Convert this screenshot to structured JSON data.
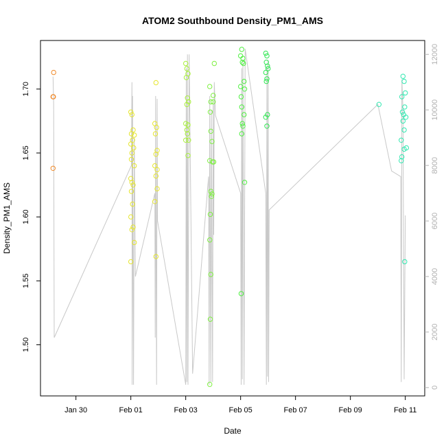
{
  "chart_data": {
    "type": "scatter",
    "title": "ATOM2 Southbound Density_PM1_AMS",
    "xlabel": "Date",
    "ylabel": "Density_PM1_AMS",
    "xlim": [
      "2022-01-28T17:00",
      "2022-02-11T17:00"
    ],
    "ylim": [
      1.46,
      1.738
    ],
    "y2lim": [
      -300,
      12500
    ],
    "x_ticks": [
      {
        "date": "2022-01-30",
        "label": "Jan 30"
      },
      {
        "date": "2022-02-01",
        "label": "Feb 01"
      },
      {
        "date": "2022-02-03",
        "label": "Feb 03"
      },
      {
        "date": "2022-02-05",
        "label": "Feb 05"
      },
      {
        "date": "2022-02-07",
        "label": "Feb 07"
      },
      {
        "date": "2022-02-09",
        "label": "Feb 09"
      },
      {
        "date": "2022-02-11",
        "label": "Feb 11"
      }
    ],
    "y_ticks": [
      {
        "value": 1.5,
        "label": "1.50"
      },
      {
        "value": 1.55,
        "label": "1.55"
      },
      {
        "value": 1.6,
        "label": "1.60"
      },
      {
        "value": 1.65,
        "label": "1.65"
      },
      {
        "value": 1.7,
        "label": "1.70"
      }
    ],
    "y2_ticks": [
      {
        "value": 0,
        "label": "0"
      },
      {
        "value": 2000,
        "label": "2000"
      },
      {
        "value": 4000,
        "label": "4000"
      },
      {
        "value": 6000,
        "label": "6000"
      },
      {
        "value": 8000,
        "label": "8000"
      },
      {
        "value": 10000,
        "label": "10000"
      },
      {
        "value": 12000,
        "label": "12000"
      }
    ],
    "grid": false,
    "legend": "none",
    "line_color": "#c8c8c8",
    "secondary_line": [
      [
        "2022-01-29T04:00",
        11200
      ],
      [
        "2022-01-29T04:30",
        10200
      ],
      [
        "2022-01-29T05:00",
        1800
      ],
      [
        "2022-02-01T00:30",
        8000
      ],
      [
        "2022-02-01T01:00",
        11000
      ],
      [
        "2022-02-01T01:10",
        100
      ],
      [
        "2022-02-01T01:30",
        10500
      ],
      [
        "2022-02-01T02:00",
        4000
      ],
      [
        "2022-02-01T02:20",
        100
      ],
      [
        "2022-02-01T03:00",
        9000
      ],
      [
        "2022-02-01T04:00",
        4000
      ],
      [
        "2022-02-01T21:00",
        7000
      ],
      [
        "2022-02-01T21:20",
        1800
      ],
      [
        "2022-02-01T21:40",
        10500
      ],
      [
        "2022-02-01T22:00",
        6000
      ],
      [
        "2022-02-01T22:30",
        100
      ],
      [
        "2022-02-01T23:00",
        10400
      ],
      [
        "2022-02-01T23:20",
        6000
      ],
      [
        "2022-02-03T00:00",
        100
      ],
      [
        "2022-02-03T00:30",
        11500
      ],
      [
        "2022-02-03T01:00",
        200
      ],
      [
        "2022-02-03T01:30",
        12000
      ],
      [
        "2022-02-03T02:00",
        100
      ],
      [
        "2022-02-03T03:00",
        12000
      ],
      [
        "2022-02-03T06:00",
        500
      ],
      [
        "2022-02-03T20:00",
        7600
      ],
      [
        "2022-02-03T20:30",
        100
      ],
      [
        "2022-02-03T21:00",
        10500
      ],
      [
        "2022-02-03T21:30",
        5000
      ],
      [
        "2022-02-03T22:00",
        200
      ],
      [
        "2022-02-03T22:30",
        10000
      ],
      [
        "2022-02-03T23:00",
        4500
      ],
      [
        "2022-02-03T23:30",
        200
      ],
      [
        "2022-02-04T00:00",
        10200
      ],
      [
        "2022-02-04T00:30",
        5500
      ],
      [
        "2022-02-04T01:00",
        11000
      ],
      [
        "2022-02-04T02:00",
        9800
      ],
      [
        "2022-02-05T00:00",
        7000
      ],
      [
        "2022-02-05T00:30",
        100
      ],
      [
        "2022-02-05T01:00",
        11500
      ],
      [
        "2022-02-05T01:30",
        300
      ],
      [
        "2022-02-05T02:00",
        11800
      ],
      [
        "2022-02-05T03:00",
        100
      ],
      [
        "2022-02-05T04:00",
        12200
      ],
      [
        "2022-02-05T22:00",
        7000
      ],
      [
        "2022-02-05T22:30",
        100
      ],
      [
        "2022-02-05T23:00",
        11500
      ],
      [
        "2022-02-05T23:30",
        400
      ],
      [
        "2022-02-06T00:00",
        11800
      ],
      [
        "2022-02-06T00:30",
        200
      ],
      [
        "2022-02-06T01:00",
        6400
      ],
      [
        "2022-02-10T00:00",
        10200
      ],
      [
        "2022-02-10T12:00",
        7800
      ],
      [
        "2022-02-10T20:00",
        7600
      ],
      [
        "2022-02-10T20:30",
        200
      ],
      [
        "2022-02-10T21:00",
        11100
      ],
      [
        "2022-02-10T22:00",
        10000
      ],
      [
        "2022-02-10T23:00",
        300
      ],
      [
        "2022-02-11T00:00",
        6200
      ]
    ],
    "series": [
      {
        "color": "#f08a2a",
        "points": [
          [
            "2022-01-29T04:30",
            1.713
          ],
          [
            "2022-01-29T04:00",
            1.694
          ],
          [
            "2022-01-29T04:15",
            1.694
          ],
          [
            "2022-01-29T04:00",
            1.638
          ]
        ]
      },
      {
        "color": "#e6e62e",
        "points": [
          [
            "2022-02-01T00:00",
            1.682
          ],
          [
            "2022-02-01T01:00",
            1.68
          ],
          [
            "2022-02-01T02:00",
            1.668
          ],
          [
            "2022-02-01T00:30",
            1.665
          ],
          [
            "2022-02-01T03:00",
            1.664
          ],
          [
            "2022-02-01T01:30",
            1.66
          ],
          [
            "2022-02-01T00:00",
            1.657
          ],
          [
            "2022-02-01T02:30",
            1.654
          ],
          [
            "2022-02-01T01:00",
            1.65
          ],
          [
            "2022-02-01T00:30",
            1.645
          ],
          [
            "2022-02-01T03:00",
            1.64
          ],
          [
            "2022-02-01T00:00",
            1.63
          ],
          [
            "2022-02-01T01:00",
            1.627
          ],
          [
            "2022-02-01T02:00",
            1.625
          ],
          [
            "2022-02-01T00:30",
            1.62
          ],
          [
            "2022-02-01T01:30",
            1.61
          ],
          [
            "2022-02-01T00:00",
            1.6
          ],
          [
            "2022-02-01T02:00",
            1.592
          ],
          [
            "2022-02-01T01:00",
            1.59
          ],
          [
            "2022-02-01T03:00",
            1.58
          ],
          [
            "2022-02-01T00:00",
            1.565
          ],
          [
            "2022-02-01T22:00",
            1.705
          ],
          [
            "2022-02-01T21:00",
            1.673
          ],
          [
            "2022-02-01T22:30",
            1.67
          ],
          [
            "2022-02-01T21:30",
            1.665
          ],
          [
            "2022-02-01T23:00",
            1.652
          ],
          [
            "2022-02-01T22:00",
            1.649
          ],
          [
            "2022-02-01T21:00",
            1.64
          ],
          [
            "2022-02-01T23:00",
            1.637
          ],
          [
            "2022-02-01T22:00",
            1.632
          ],
          [
            "2022-02-01T23:00",
            1.622
          ],
          [
            "2022-02-01T21:00",
            1.612
          ],
          [
            "2022-02-01T22:00",
            1.569
          ]
        ]
      },
      {
        "color": "#a8f03a",
        "points": [
          [
            "2022-02-03T00:00",
            1.72
          ],
          [
            "2022-02-03T01:00",
            1.716
          ],
          [
            "2022-02-03T02:00",
            1.712
          ],
          [
            "2022-02-03T00:30",
            1.709
          ],
          [
            "2022-02-03T01:30",
            1.693
          ],
          [
            "2022-02-03T02:30",
            1.69
          ],
          [
            "2022-02-03T01:00",
            1.688
          ],
          [
            "2022-02-03T00:00",
            1.673
          ],
          [
            "2022-02-03T02:00",
            1.672
          ],
          [
            "2022-02-03T01:00",
            1.668
          ],
          [
            "2022-02-03T01:30",
            1.665
          ],
          [
            "2022-02-03T00:00",
            1.66
          ],
          [
            "2022-02-03T02:30",
            1.66
          ],
          [
            "2022-02-03T02:00",
            1.648
          ]
        ]
      },
      {
        "color": "#7ef040",
        "points": [
          [
            "2022-02-03T21:00",
            1.702
          ],
          [
            "2022-02-04T01:00",
            1.72
          ],
          [
            "2022-02-04T00:00",
            1.695
          ],
          [
            "2022-02-03T22:00",
            1.69
          ],
          [
            "2022-02-04T00:00",
            1.69
          ],
          [
            "2022-02-03T21:30",
            1.682
          ],
          [
            "2022-02-03T22:00",
            1.667
          ],
          [
            "2022-02-03T23:00",
            1.659
          ],
          [
            "2022-02-03T21:00",
            1.644
          ],
          [
            "2022-02-03T23:30",
            1.643
          ],
          [
            "2022-02-04T00:30",
            1.643
          ],
          [
            "2022-02-03T22:00",
            1.62
          ],
          [
            "2022-02-03T23:00",
            1.618
          ],
          [
            "2022-02-03T22:30",
            1.616
          ],
          [
            "2022-02-03T21:30",
            1.602
          ],
          [
            "2022-02-03T21:00",
            1.582
          ],
          [
            "2022-02-03T22:00",
            1.555
          ],
          [
            "2022-02-03T21:30",
            1.52
          ],
          [
            "2022-02-03T21:00",
            1.469
          ]
        ]
      },
      {
        "color": "#4ef040",
        "points": [
          [
            "2022-02-05T01:00",
            1.731
          ],
          [
            "2022-02-05T00:00",
            1.726
          ],
          [
            "2022-02-05T02:00",
            1.724
          ],
          [
            "2022-02-05T01:30",
            1.721
          ],
          [
            "2022-02-05T02:30",
            1.72
          ],
          [
            "2022-02-05T03:00",
            1.706
          ],
          [
            "2022-02-05T00:00",
            1.702
          ],
          [
            "2022-02-05T03:30",
            1.7
          ],
          [
            "2022-02-05T00:30",
            1.694
          ],
          [
            "2022-02-05T01:00",
            1.686
          ],
          [
            "2022-02-05T03:00",
            1.68
          ],
          [
            "2022-02-05T01:30",
            1.673
          ],
          [
            "2022-02-05T02:00",
            1.671
          ],
          [
            "2022-02-05T01:00",
            1.665
          ],
          [
            "2022-02-05T03:30",
            1.627
          ],
          [
            "2022-02-05T00:30",
            1.54
          ]
        ]
      },
      {
        "color": "#2ee650",
        "points": [
          [
            "2022-02-05T22:00",
            1.728
          ],
          [
            "2022-02-05T23:00",
            1.726
          ],
          [
            "2022-02-05T22:30",
            1.721
          ],
          [
            "2022-02-05T23:30",
            1.718
          ],
          [
            "2022-02-06T00:00",
            1.716
          ],
          [
            "2022-02-05T22:00",
            1.713
          ],
          [
            "2022-02-05T23:00",
            1.708
          ],
          [
            "2022-02-05T22:30",
            1.706
          ],
          [
            "2022-02-05T23:30",
            1.68
          ],
          [
            "2022-02-05T22:00",
            1.678
          ],
          [
            "2022-02-05T23:00",
            1.671
          ]
        ]
      },
      {
        "color": "#30e8b0",
        "points": [
          [
            "2022-02-10T01:00",
            1.688
          ],
          [
            "2022-02-10T22:00",
            1.71
          ],
          [
            "2022-02-10T23:00",
            1.706
          ],
          [
            "2022-02-11T00:00",
            1.697
          ],
          [
            "2022-02-10T21:00",
            1.694
          ],
          [
            "2022-02-10T23:30",
            1.686
          ],
          [
            "2022-02-10T21:30",
            1.682
          ],
          [
            "2022-02-10T22:30",
            1.68
          ],
          [
            "2022-02-11T00:30",
            1.678
          ],
          [
            "2022-02-10T22:00",
            1.675
          ],
          [
            "2022-02-10T23:00",
            1.668
          ],
          [
            "2022-02-10T20:30",
            1.66
          ],
          [
            "2022-02-11T01:00",
            1.654
          ],
          [
            "2022-02-10T23:00",
            1.653
          ],
          [
            "2022-02-10T21:00",
            1.647
          ],
          [
            "2022-02-10T20:30",
            1.644
          ],
          [
            "2022-02-10T23:30",
            1.565
          ]
        ]
      }
    ]
  }
}
